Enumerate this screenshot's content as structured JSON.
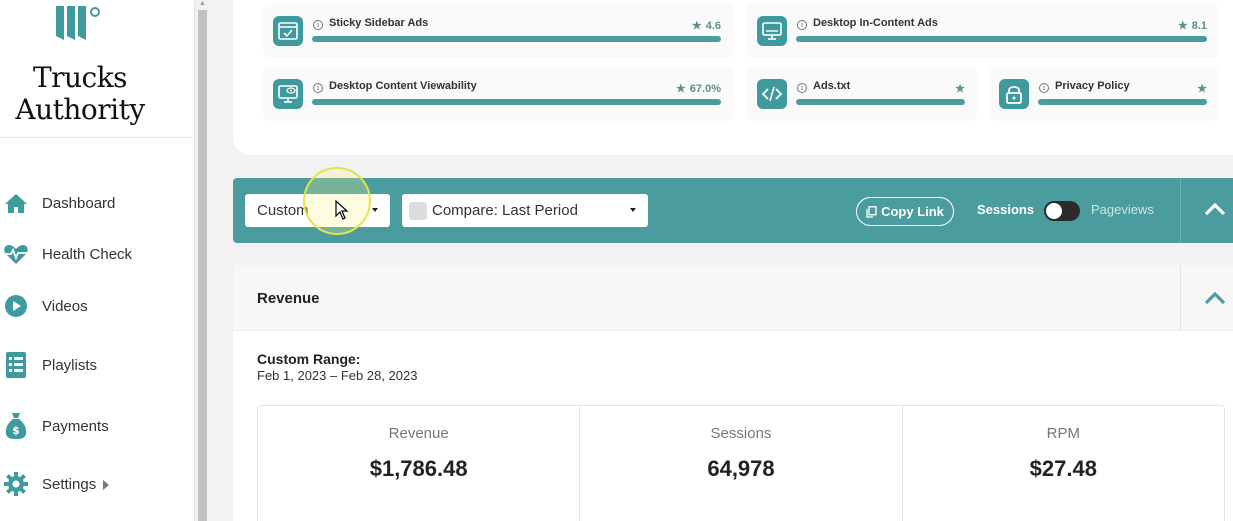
{
  "sidebar": {
    "brand_line1": "Trucks",
    "brand_line2": "Authority",
    "items": [
      {
        "label": "Dashboard",
        "icon": "home-icon"
      },
      {
        "label": "Health Check",
        "icon": "heartbeat-icon"
      },
      {
        "label": "Videos",
        "icon": "play-icon"
      },
      {
        "label": "Playlists",
        "icon": "list-icon"
      },
      {
        "label": "Payments",
        "icon": "money-bag-icon"
      },
      {
        "label": "Settings",
        "icon": "gear-icon"
      }
    ]
  },
  "health_check": {
    "items": [
      {
        "title": "Sticky Sidebar Ads",
        "score": "4.6",
        "icon": "browser-check-icon"
      },
      {
        "title": "Desktop In-Content Ads",
        "score": "8.1",
        "icon": "monitor-icon"
      },
      {
        "title": "Desktop Content Viewability",
        "score": "67.0%",
        "icon": "monitor-eye-icon"
      },
      {
        "title": "Ads.txt",
        "score": "",
        "icon": "code-icon"
      },
      {
        "title": "Privacy Policy",
        "score": "",
        "icon": "lock-icon"
      }
    ]
  },
  "filter_bar": {
    "range_select": "Custom",
    "compare_select": "Compare: Last Period",
    "copy_link": "Copy Link",
    "toggle_left": "Sessions",
    "toggle_right": "Pageviews"
  },
  "revenue": {
    "title": "Revenue",
    "range_label": "Custom Range:",
    "range_dates": "Feb 1, 2023 – Feb 28, 2023",
    "stats": [
      {
        "label": "Revenue",
        "value": "$1,786.48"
      },
      {
        "label": "Sessions",
        "value": "64,978"
      },
      {
        "label": "RPM",
        "value": "$27.48"
      }
    ]
  },
  "colors": {
    "teal": "#4a9c9e",
    "icon_teal": "#3e9a9c"
  }
}
